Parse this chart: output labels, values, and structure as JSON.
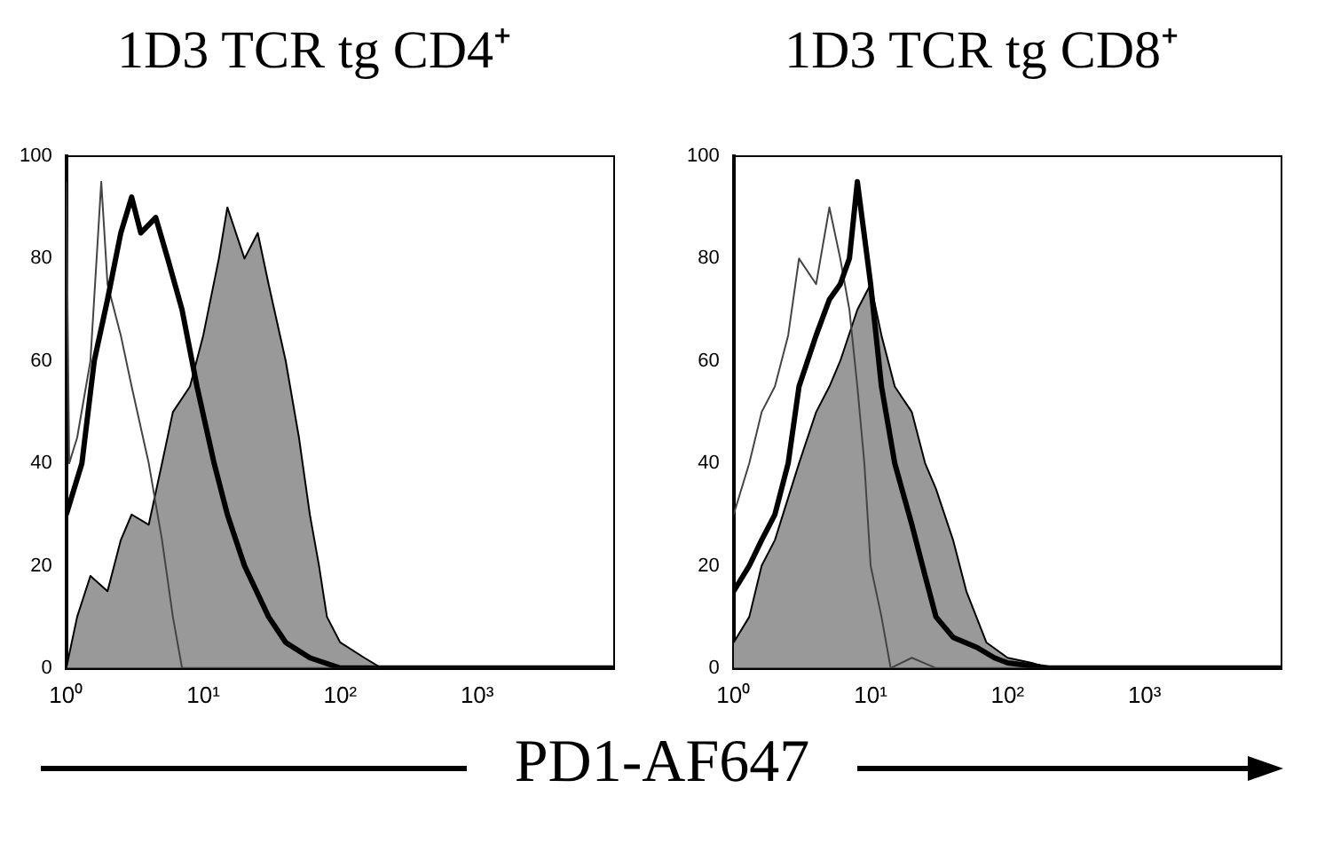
{
  "chart_data": [
    {
      "type": "line",
      "title": "1D3 TCR tg CD4⁺",
      "xlabel": "PD1-AF647",
      "log": "x",
      "xlim": [
        1,
        10000
      ],
      "ylim": [
        0,
        100
      ],
      "xticks": [
        {
          "value": 1,
          "label": "10⁰"
        },
        {
          "value": 10,
          "label": "10¹"
        },
        {
          "value": 100,
          "label": "10²"
        },
        {
          "value": 1000,
          "label": "10³"
        }
      ],
      "yticks": [
        0,
        20,
        40,
        60,
        80,
        100
      ],
      "grid": false,
      "legend": false,
      "series": [
        {
          "type": "area",
          "color": "#999999",
          "x": [
            1,
            1.2,
            1.5,
            2,
            2.5,
            3,
            4,
            5,
            6,
            8,
            10,
            13,
            15,
            20,
            25,
            30,
            40,
            50,
            60,
            70,
            80,
            100,
            150,
            200,
            10000
          ],
          "values": [
            0,
            10,
            18,
            15,
            25,
            30,
            28,
            40,
            50,
            55,
            65,
            80,
            90,
            80,
            85,
            75,
            60,
            45,
            30,
            20,
            10,
            5,
            2,
            0,
            0
          ]
        },
        {
          "type": "line",
          "color": "#444444",
          "x": [
            1,
            1.05,
            1.2,
            1.5,
            1.8,
            2,
            2.5,
            3,
            4,
            5,
            6,
            7,
            10,
            100,
            10000
          ],
          "values": [
            95,
            40,
            45,
            60,
            95,
            75,
            65,
            55,
            40,
            25,
            10,
            0,
            0,
            0,
            0
          ]
        },
        {
          "type": "line",
          "color": "#000000",
          "x": [
            1,
            1.3,
            1.6,
            2,
            2.5,
            3,
            3.5,
            4.5,
            5.5,
            7,
            9,
            12,
            15,
            20,
            30,
            40,
            60,
            100,
            10000
          ],
          "values": [
            30,
            40,
            60,
            72,
            85,
            92,
            85,
            88,
            80,
            70,
            55,
            40,
            30,
            20,
            10,
            5,
            2,
            0,
            0
          ]
        }
      ]
    },
    {
      "type": "line",
      "title": "1D3 TCR tg CD8⁺",
      "log": "x",
      "xlim": [
        1,
        10000
      ],
      "ylim": [
        0,
        100
      ],
      "xticks": [
        {
          "value": 1,
          "label": "10⁰"
        },
        {
          "value": 10,
          "label": "10¹"
        },
        {
          "value": 100,
          "label": "10²"
        },
        {
          "value": 1000,
          "label": "10³"
        }
      ],
      "yticks": [
        0,
        20,
        40,
        60,
        80,
        100
      ],
      "grid": false,
      "legend": false,
      "series": [
        {
          "type": "area",
          "color": "#999999",
          "x": [
            1,
            1.3,
            1.6,
            2,
            3,
            4,
            5,
            6,
            8,
            10,
            12,
            15,
            20,
            25,
            30,
            40,
            50,
            70,
            100,
            150,
            200,
            10000
          ],
          "values": [
            5,
            10,
            20,
            25,
            40,
            50,
            55,
            60,
            70,
            75,
            65,
            55,
            50,
            40,
            35,
            25,
            15,
            5,
            2,
            1,
            0,
            0
          ]
        },
        {
          "type": "line",
          "color": "#444444",
          "x": [
            1,
            1.3,
            1.6,
            2,
            2.5,
            3,
            4,
            5,
            6,
            7,
            8,
            9,
            10,
            12,
            14,
            20,
            30,
            10000
          ],
          "values": [
            30,
            40,
            50,
            55,
            65,
            80,
            75,
            90,
            80,
            70,
            55,
            40,
            20,
            10,
            0,
            2,
            0,
            0
          ]
        },
        {
          "type": "line",
          "color": "#000000",
          "x": [
            1,
            1.3,
            1.6,
            2,
            2.5,
            3,
            4,
            5,
            6,
            7,
            8,
            10,
            12,
            15,
            20,
            25,
            30,
            40,
            60,
            80,
            100,
            200,
            10000
          ],
          "values": [
            15,
            20,
            25,
            30,
            40,
            55,
            65,
            72,
            75,
            80,
            95,
            75,
            55,
            40,
            28,
            18,
            10,
            6,
            4,
            2,
            1,
            0,
            0
          ]
        }
      ]
    }
  ]
}
